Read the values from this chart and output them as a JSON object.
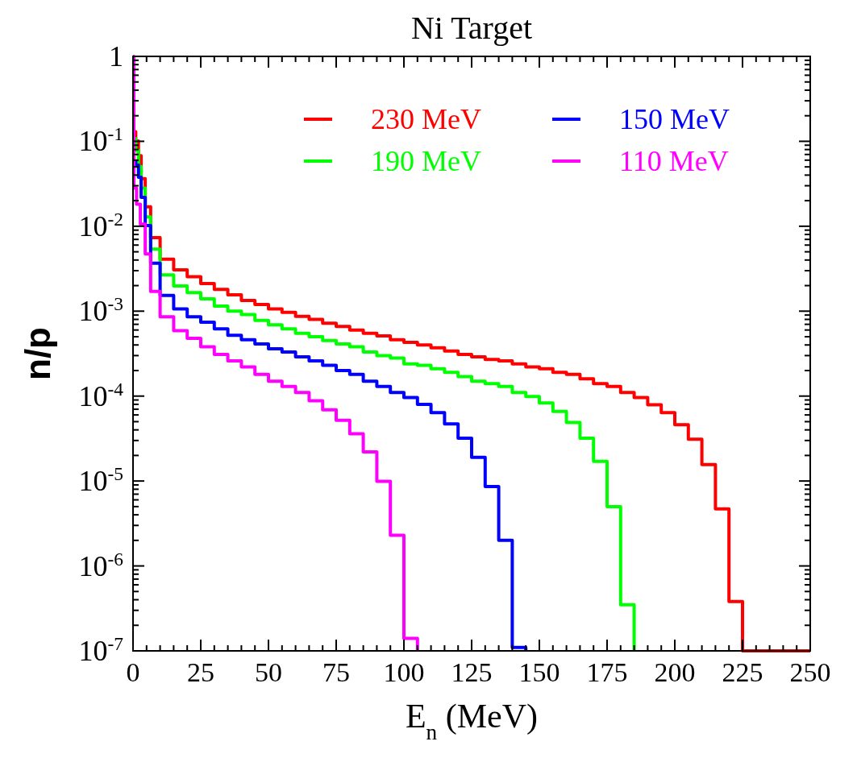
{
  "chart_data": {
    "type": "step",
    "title": "Ni Target",
    "xlabel": "E$_{n}$ (MeV)",
    "ylabel": "n/p",
    "log": "y",
    "legend": "top right",
    "grid": false,
    "xlim": [
      0,
      250
    ],
    "ylim": [
      1e-07,
      1
    ],
    "xticks": [
      0,
      {
        "value": 5,
        "label": null
      },
      {
        "value": 10,
        "label": null
      },
      {
        "value": 15,
        "label": null
      },
      {
        "value": 20,
        "label": null
      },
      25,
      {
        "value": 30,
        "label": null
      },
      {
        "value": 35,
        "label": null
      },
      {
        "value": 40,
        "label": null
      },
      {
        "value": 45,
        "label": null
      },
      50,
      {
        "value": 55,
        "label": null
      },
      {
        "value": 60,
        "label": null
      },
      {
        "value": 65,
        "label": null
      },
      {
        "value": 70,
        "label": null
      },
      75,
      {
        "value": 80,
        "label": null
      },
      {
        "value": 85,
        "label": null
      },
      {
        "value": 90,
        "label": null
      },
      {
        "value": 95,
        "label": null
      },
      100,
      {
        "value": 105,
        "label": null
      },
      {
        "value": 110,
        "label": null
      },
      {
        "value": 115,
        "label": null
      },
      {
        "value": 120,
        "label": null
      },
      125,
      {
        "value": 130,
        "label": null
      },
      {
        "value": 135,
        "label": null
      },
      {
        "value": 140,
        "label": null
      },
      {
        "value": 145,
        "label": null
      },
      150,
      {
        "value": 155,
        "label": null
      },
      {
        "value": 160,
        "label": null
      },
      {
        "value": 165,
        "label": null
      },
      {
        "value": 170,
        "label": null
      },
      175,
      {
        "value": 180,
        "label": null
      },
      {
        "value": 185,
        "label": null
      },
      {
        "value": 190,
        "label": null
      },
      {
        "value": 195,
        "label": null
      },
      200,
      {
        "value": 205,
        "label": null
      },
      {
        "value": 210,
        "label": null
      },
      {
        "value": 215,
        "label": null
      },
      {
        "value": 220,
        "label": null
      },
      225,
      {
        "value": 230,
        "label": null
      },
      {
        "value": 235,
        "label": null
      },
      {
        "value": 240,
        "label": null
      },
      {
        "value": 245,
        "label": null
      },
      250
    ],
    "yticks": [
      1,
      {
        "value": 0.9,
        "label": null
      },
      {
        "value": 0.8,
        "label": null
      },
      {
        "value": 0.7,
        "label": null
      },
      {
        "value": 0.6,
        "label": null
      },
      {
        "value": 0.5,
        "label": null
      },
      {
        "value": 0.4,
        "label": null
      },
      {
        "value": 0.3,
        "label": null
      },
      {
        "value": 0.2,
        "label": null
      },
      {
        "value": 0.1,
        "label": "10$^{-1}$"
      },
      {
        "value": 0.09,
        "label": null
      },
      {
        "value": 0.08,
        "label": null
      },
      {
        "value": 0.07,
        "label": null
      },
      {
        "value": 0.06,
        "label": null
      },
      {
        "value": 0.05,
        "label": null
      },
      {
        "value": 0.04,
        "label": null
      },
      {
        "value": 0.03,
        "label": null
      },
      {
        "value": 0.02,
        "label": null
      },
      {
        "value": 0.01,
        "label": "10$^{-2}$"
      },
      {
        "value": 0.009,
        "label": null
      },
      {
        "value": 0.008,
        "label": null
      },
      {
        "value": 0.007,
        "label": null
      },
      {
        "value": 0.006,
        "label": null
      },
      {
        "value": 0.005,
        "label": null
      },
      {
        "value": 0.004,
        "label": null
      },
      {
        "value": 0.003,
        "label": null
      },
      {
        "value": 0.002,
        "label": null
      },
      {
        "value": 0.001,
        "label": "10$^{-3}$"
      },
      {
        "value": 0.0009,
        "label": null
      },
      {
        "value": 0.0008,
        "label": null
      },
      {
        "value": 0.0007,
        "label": null
      },
      {
        "value": 0.0006,
        "label": null
      },
      {
        "value": 0.0005,
        "label": null
      },
      {
        "value": 0.0004,
        "label": null
      },
      {
        "value": 0.0003,
        "label": null
      },
      {
        "value": 0.0002,
        "label": null
      },
      {
        "value": 0.0001,
        "label": "10$^{-4}$"
      },
      {
        "value": 9e-05,
        "label": null
      },
      {
        "value": 8e-05,
        "label": null
      },
      {
        "value": 7e-05,
        "label": null
      },
      {
        "value": 6e-05,
        "label": null
      },
      {
        "value": 5e-05,
        "label": null
      },
      {
        "value": 4e-05,
        "label": null
      },
      {
        "value": 3e-05,
        "label": null
      },
      {
        "value": 2e-05,
        "label": null
      },
      {
        "value": 1e-05,
        "label": "10$^{-5}$"
      },
      {
        "value": 9e-06,
        "label": null
      },
      {
        "value": 8e-06,
        "label": null
      },
      {
        "value": 7e-06,
        "label": null
      },
      {
        "value": 6e-06,
        "label": null
      },
      {
        "value": 5e-06,
        "label": null
      },
      {
        "value": 4e-06,
        "label": null
      },
      {
        "value": 3e-06,
        "label": null
      },
      {
        "value": 2e-06,
        "label": null
      },
      {
        "value": 1e-06,
        "label": "10$^{-6}$"
      },
      {
        "value": 9e-07,
        "label": null
      },
      {
        "value": 8e-07,
        "label": null
      },
      {
        "value": 7e-07,
        "label": null
      },
      {
        "value": 6e-07,
        "label": null
      },
      {
        "value": 5e-07,
        "label": null
      },
      {
        "value": 4e-07,
        "label": null
      },
      {
        "value": 3e-07,
        "label": null
      },
      {
        "value": 2e-07,
        "label": null
      },
      {
        "value": 1e-07,
        "label": "10$^{-7}$"
      }
    ],
    "series": [
      {
        "name": "230 MeV",
        "color": "#ff0000",
        "x": [
          0,
          1,
          2,
          3,
          4.5,
          6.5,
          10,
          15,
          20,
          25,
          30,
          35,
          40,
          45,
          50,
          55,
          60,
          65,
          70,
          75,
          80,
          85,
          90,
          95,
          100,
          105,
          110,
          115,
          120,
          125,
          130,
          135,
          140,
          145,
          150,
          155,
          160,
          165,
          170,
          175,
          180,
          185,
          190,
          195,
          200,
          205,
          210,
          215,
          220,
          225,
          250
        ],
        "values": [
          0.13,
          0.101,
          0.0676,
          0.0364,
          0.0169,
          0.00733,
          0.00409,
          0.00306,
          0.00255,
          0.00212,
          0.0018,
          0.00156,
          0.00134,
          0.0012,
          0.00106,
          0.00097,
          0.00087,
          0.0008,
          0.00072,
          0.00066,
          0.0006,
          0.00055,
          0.00051,
          0.00046,
          0.00043,
          0.0004,
          0.00037,
          0.00034,
          0.00031,
          0.00029,
          0.00027,
          0.00026,
          0.00024,
          0.00022,
          0.00021,
          0.00019,
          0.00018,
          0.00016,
          0.00014,
          0.00013,
          0.00011,
          9.6e-05,
          7.9e-05,
          6.4e-05,
          4.6e-05,
          3.1e-05,
          1.56e-05,
          4.7e-06,
          3.8e-07,
          1e-07,
          1e-07
        ]
      },
      {
        "name": "190 MeV",
        "color": "#00ff00",
        "x": [
          0,
          1,
          2,
          3,
          4.5,
          6.5,
          10,
          15,
          20,
          25,
          30,
          35,
          40,
          45,
          50,
          55,
          60,
          65,
          70,
          75,
          80,
          85,
          90,
          95,
          100,
          105,
          110,
          115,
          120,
          125,
          130,
          135,
          140,
          145,
          150,
          155,
          160,
          165,
          170,
          175,
          180,
          185
        ],
        "values": [
          0.108,
          0.0781,
          0.0505,
          0.0282,
          0.0129,
          0.00537,
          0.00268,
          0.00198,
          0.00165,
          0.0014,
          0.00115,
          0.001,
          0.00091,
          0.00078,
          0.00069,
          0.00062,
          0.00055,
          0.0005,
          0.00045,
          0.00041,
          0.00038,
          0.00033,
          0.0003,
          0.00028,
          0.00024,
          0.00023,
          0.00021,
          0.00019,
          0.00017,
          0.00015,
          0.00014,
          0.00013,
          0.00011,
          9.9e-05,
          8.3e-05,
          6.6e-05,
          4.9e-05,
          3.2e-05,
          1.7e-05,
          5e-06,
          3.5e-07,
          1e-07
        ]
      },
      {
        "name": "150 MeV",
        "color": "#0000ff",
        "x": [
          0,
          1,
          2,
          3,
          4.5,
          6.5,
          10,
          15,
          20,
          25,
          30,
          35,
          40,
          45,
          50,
          55,
          60,
          65,
          70,
          75,
          80,
          85,
          90,
          95,
          100,
          105,
          110,
          115,
          120,
          125,
          130,
          135,
          140,
          145
        ],
        "values": [
          0.0584,
          0.0524,
          0.0377,
          0.0219,
          0.0102,
          0.00367,
          0.00153,
          0.00106,
          0.00086,
          0.00074,
          0.00062,
          0.00052,
          0.00046,
          0.00041,
          0.00036,
          0.00033,
          0.00029,
          0.00026,
          0.00023,
          0.0002,
          0.00018,
          0.00015,
          0.00013,
          0.00011,
          9.6e-05,
          8e-05,
          6.4e-05,
          4.7e-05,
          3.2e-05,
          1.9e-05,
          8.6e-06,
          2e-06,
          1.1e-07,
          1e-07
        ]
      },
      {
        "name": "110 MeV",
        "color": "#ff00ff",
        "x": [
          0,
          0.3,
          1.3,
          2.7,
          4.5,
          6.5,
          10,
          15,
          20,
          25,
          30,
          35,
          40,
          45,
          50,
          55,
          60,
          65,
          70,
          75,
          80,
          85,
          90,
          95,
          100,
          105
        ],
        "values": [
          1,
          0.0282,
          0.0182,
          0.0106,
          0.00473,
          0.00171,
          0.00086,
          0.00059,
          0.00048,
          0.00038,
          0.00031,
          0.00026,
          0.00022,
          0.00018,
          0.00015,
          0.00013,
          0.00011,
          8.8e-05,
          6.9e-05,
          5.2e-05,
          3.6e-05,
          2.2e-05,
          9.9e-06,
          2.3e-06,
          1.4e-07,
          1e-07
        ]
      }
    ]
  }
}
